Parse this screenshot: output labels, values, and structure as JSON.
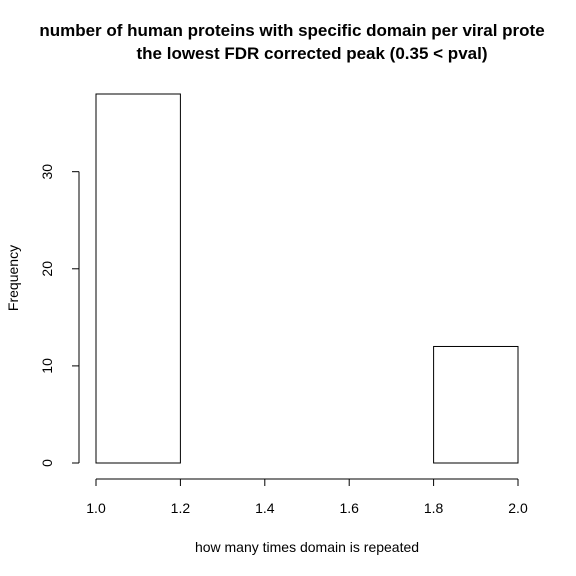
{
  "chart_data": {
    "type": "bar",
    "title_lines": [
      "number of human proteins with specific domain per viral prote",
      "the lowest FDR corrected peak (0.35 < pval)"
    ],
    "xlabel": "how many times domain is repeated",
    "ylabel": "Frequency",
    "bins": [
      {
        "start": 1.0,
        "end": 1.2,
        "value": 38
      },
      {
        "start": 1.2,
        "end": 1.4,
        "value": 0
      },
      {
        "start": 1.4,
        "end": 1.6,
        "value": 0
      },
      {
        "start": 1.6,
        "end": 1.8,
        "value": 0
      },
      {
        "start": 1.8,
        "end": 2.0,
        "value": 12
      }
    ],
    "xlim": [
      1.0,
      2.0
    ],
    "ylim": [
      0,
      38
    ],
    "x_ticks": [
      "1.0",
      "1.2",
      "1.4",
      "1.6",
      "1.8",
      "2.0"
    ],
    "y_ticks": [
      "0",
      "10",
      "20",
      "30"
    ],
    "bar_fill": "#ffffff",
    "bar_stroke": "#000000",
    "grid": false,
    "legend": "none"
  }
}
